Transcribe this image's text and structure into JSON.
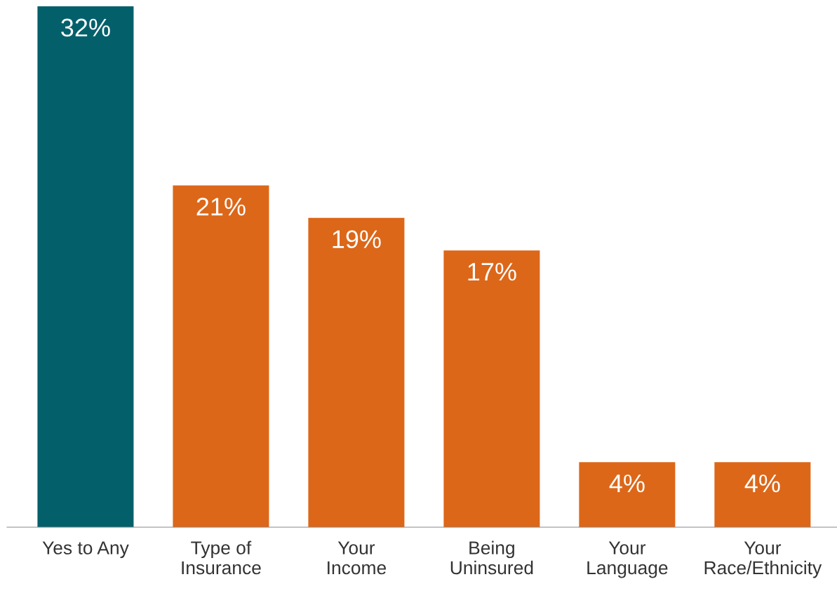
{
  "chart_data": {
    "type": "bar",
    "categories": [
      "Yes to Any",
      "Type of\nInsurance",
      "Your\nIncome",
      "Being\nUninsured",
      "Your\nLanguage",
      "Your\nRace/Ethnicity"
    ],
    "values": [
      32,
      21,
      19,
      17,
      4,
      4
    ],
    "colors": [
      "#03606b",
      "#dc6719",
      "#dc6719",
      "#dc6719",
      "#dc6719",
      "#dc6719"
    ],
    "value_labels": [
      "32%",
      "21%",
      "19%",
      "17%",
      "4%",
      "4%"
    ],
    "grid": false,
    "legend": false
  }
}
